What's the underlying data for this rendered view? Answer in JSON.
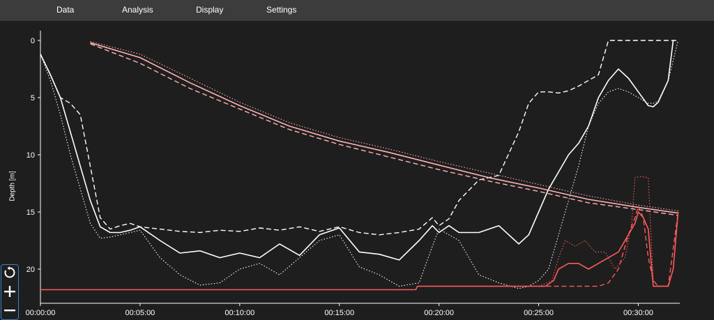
{
  "menu": {
    "items": [
      {
        "label": "Data"
      },
      {
        "label": "Analysis"
      },
      {
        "label": "Display"
      },
      {
        "label": "Settings"
      }
    ]
  },
  "toolbar": {
    "buttons": [
      {
        "icon": "reset-icon"
      },
      {
        "icon": "zoom-in-icon"
      },
      {
        "icon": "zoom-out-icon"
      }
    ]
  },
  "colors": {
    "background": "#1e1e1e",
    "menubar": "#3c3c3c",
    "depth_series": "#ffffff",
    "ceiling_series": "#ffb3b3",
    "alert_series": "#ff5a5a",
    "toolbar_border": "#3b82c4"
  },
  "chart_data": {
    "type": "line",
    "title": "",
    "xlabel": "",
    "ylabel": "Depth [m]",
    "x_unit": "seconds",
    "xlim": [
      0,
      1925
    ],
    "ylim": [
      0,
      23
    ],
    "y_inverted": true,
    "grid": false,
    "x_ticks": [
      {
        "value": 0,
        "label": "00:00:00"
      },
      {
        "value": 300,
        "label": "00:05:00"
      },
      {
        "value": 600,
        "label": "00:10:00"
      },
      {
        "value": 900,
        "label": "00:15:00"
      },
      {
        "value": 1200,
        "label": "00:20:00"
      },
      {
        "value": 1500,
        "label": "00:25:00"
      },
      {
        "value": 1800,
        "label": "00:30:00"
      }
    ],
    "y_ticks": [
      {
        "value": 0,
        "label": "0"
      },
      {
        "value": 5,
        "label": "5"
      },
      {
        "value": 10,
        "label": "10"
      },
      {
        "value": 15,
        "label": "15"
      },
      {
        "value": 20,
        "label": "20"
      }
    ],
    "series": [
      {
        "color": "#ffffff",
        "dash": "solid",
        "x": [
          0,
          30,
          60,
          90,
          120,
          150,
          180,
          210,
          240,
          270,
          300,
          360,
          420,
          480,
          540,
          600,
          660,
          720,
          780,
          840,
          900,
          960,
          1020,
          1080,
          1140,
          1180,
          1200,
          1230,
          1260,
          1320,
          1380,
          1440,
          1470,
          1500,
          1530,
          1560,
          1590,
          1620,
          1650,
          1680,
          1710,
          1740,
          1770,
          1800,
          1830,
          1845,
          1860,
          1890,
          1905
        ],
        "y": [
          1.2,
          3,
          5,
          8,
          11,
          14,
          16.3,
          16.8,
          16.8,
          16.6,
          16.3,
          17.5,
          18.6,
          18.4,
          19,
          18.6,
          19,
          17.8,
          18.8,
          17,
          16.4,
          18.5,
          18.7,
          19.2,
          17.5,
          16.2,
          16.8,
          16.2,
          16.8,
          16.8,
          16.2,
          17.8,
          17,
          15,
          13,
          11.5,
          10,
          9,
          7.5,
          5,
          3.5,
          2.5,
          3.3,
          4.5,
          5.7,
          5.8,
          5.4,
          3.5,
          0
        ]
      },
      {
        "color": "#ffffff",
        "dash": "dashed",
        "x": [
          0,
          30,
          60,
          90,
          120,
          150,
          180,
          210,
          240,
          270,
          300,
          360,
          420,
          480,
          540,
          600,
          660,
          720,
          780,
          840,
          900,
          960,
          1020,
          1080,
          1140,
          1180,
          1200,
          1230,
          1260,
          1320,
          1380,
          1440,
          1470,
          1500,
          1530,
          1560,
          1590,
          1620,
          1650,
          1680,
          1710,
          1740,
          1770,
          1800,
          1830,
          1845,
          1860,
          1890,
          1920
        ],
        "y": [
          1.2,
          3,
          5,
          5.5,
          6.5,
          11,
          15.5,
          16.5,
          16.2,
          16,
          16.3,
          16.5,
          16.7,
          16.8,
          16.6,
          16.7,
          16.4,
          16.6,
          16.3,
          16.7,
          16.3,
          16.8,
          17,
          16.8,
          16.5,
          15.5,
          16.2,
          15.6,
          14,
          12.2,
          11.8,
          8,
          5.5,
          4.5,
          4.5,
          4.6,
          4.4,
          4,
          3.5,
          3,
          0,
          0,
          0,
          0,
          0,
          0,
          0,
          0,
          0
        ]
      },
      {
        "color": "#ffffff",
        "dash": "dotted",
        "x": [
          0,
          30,
          60,
          90,
          120,
          150,
          180,
          210,
          240,
          270,
          300,
          360,
          420,
          480,
          540,
          600,
          660,
          720,
          780,
          840,
          900,
          960,
          1020,
          1080,
          1140,
          1180,
          1200,
          1230,
          1260,
          1320,
          1380,
          1440,
          1470,
          1500,
          1530,
          1560,
          1590,
          1620,
          1650,
          1680,
          1710,
          1740,
          1770,
          1800,
          1830,
          1845,
          1860,
          1890,
          1920
        ],
        "y": [
          1.2,
          3.5,
          6.5,
          10,
          13,
          16,
          17.3,
          17.2,
          17,
          16.8,
          16.6,
          19,
          20.5,
          21.4,
          21.2,
          20,
          19.5,
          20.5,
          19,
          17.5,
          17,
          19.8,
          20.5,
          21.5,
          21.2,
          18,
          16.5,
          17,
          17.5,
          20.5,
          21.2,
          21.7,
          21.5,
          21,
          20,
          17,
          14,
          11,
          7.5,
          5.5,
          4.5,
          4.2,
          4.5,
          5,
          5.5,
          5.5,
          5.3,
          3.5,
          0
        ]
      },
      {
        "color": "#ffb3b3",
        "dash": "solid",
        "x": [
          150,
          300,
          450,
          600,
          750,
          900,
          1050,
          1200,
          1350,
          1500,
          1650,
          1800,
          1920
        ],
        "y": [
          0.2,
          1.5,
          3.7,
          5.7,
          7.5,
          8.8,
          9.8,
          10.9,
          12,
          12.9,
          13.9,
          14.6,
          15.1
        ]
      },
      {
        "color": "#ffb3b3",
        "dash": "dashed",
        "x": [
          150,
          300,
          450,
          600,
          750,
          900,
          1050,
          1200,
          1350,
          1500,
          1650,
          1800,
          1920
        ],
        "y": [
          0.3,
          2,
          4.2,
          6,
          7.8,
          9.1,
          10.2,
          11.3,
          12.3,
          13.2,
          14.2,
          14.8,
          15.3
        ]
      },
      {
        "color": "#ffb3b3",
        "dash": "dotted",
        "x": [
          150,
          300,
          450,
          600,
          750,
          900,
          1050,
          1200,
          1350,
          1500,
          1650,
          1800,
          1920
        ],
        "y": [
          0.1,
          1.2,
          3.3,
          5.4,
          7.2,
          8.5,
          9.5,
          10.6,
          11.6,
          12.6,
          13.6,
          14.4,
          14.9
        ]
      },
      {
        "color": "#ff5a5a",
        "dash": "solid",
        "x": [
          0,
          300,
          600,
          900,
          1130,
          1135,
          1200,
          1500,
          1520,
          1545,
          1560,
          1590,
          1620,
          1650,
          1680,
          1710,
          1740,
          1770,
          1790,
          1800,
          1815,
          1830,
          1845,
          1860,
          1890,
          1905,
          1920
        ],
        "y": [
          21.8,
          21.8,
          21.8,
          21.8,
          21.8,
          21.5,
          21.5,
          21.5,
          21.5,
          21,
          20,
          19.5,
          19.5,
          20,
          19.5,
          19,
          18.5,
          17,
          16,
          15,
          15.5,
          16.5,
          21.5,
          21.5,
          21.5,
          20,
          15
        ]
      },
      {
        "color": "#ff5a5a",
        "dash": "dashed",
        "x": [
          1500,
          1580,
          1680,
          1710,
          1740,
          1770,
          1790,
          1800,
          1815,
          1830,
          1845,
          1860,
          1890,
          1920
        ],
        "y": [
          21.5,
          21.5,
          21.5,
          21.2,
          20,
          17,
          15.5,
          14.5,
          15.5,
          19,
          21,
          21.5,
          21.5,
          15
        ]
      },
      {
        "color": "#ff5a5a",
        "dash": "dotted",
        "x": [
          1500,
          1540,
          1560,
          1580,
          1610,
          1640,
          1670,
          1700,
          1730,
          1760,
          1780,
          1790,
          1810,
          1830,
          1845,
          1860
        ],
        "y": [
          21.5,
          21,
          19,
          17.5,
          18,
          17.5,
          18.5,
          18.5,
          20,
          19,
          16,
          12,
          11.9,
          12,
          21,
          21.5
        ]
      }
    ]
  }
}
